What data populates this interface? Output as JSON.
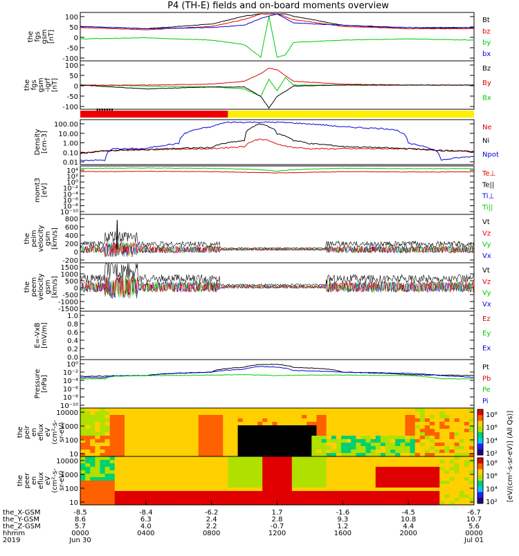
{
  "title": "P4 (TH-E) fields and on-board moments overview",
  "colors": {
    "black": "#000000",
    "red": "#e00000",
    "green": "#00c800",
    "blue": "#0000dd",
    "yellow_bar": "#ffee00",
    "red_bar": "#ee0000"
  },
  "chart_data": [
    {
      "type": "line",
      "panel": "the_fgs_gsm",
      "ylabel_lines": [
        "the",
        "fgs",
        "gsm",
        "[nT]"
      ],
      "ylim": [
        -100,
        100
      ],
      "yticks": [
        "100",
        "50",
        "0",
        "-50",
        "-100"
      ],
      "legend": [
        {
          "name": "Bt",
          "color": "#000000"
        },
        {
          "name": "bz",
          "color": "#e00000"
        },
        {
          "name": "by",
          "color": "#00c800"
        },
        {
          "name": "bx",
          "color": "#0000dd"
        }
      ],
      "series": [
        {
          "name": "Bt",
          "x_hours": [
            0,
            4,
            8,
            10,
            11,
            11.5,
            12,
            12.5,
            13,
            16,
            20,
            24
          ],
          "values": [
            45,
            35,
            55,
            90,
            100,
            100,
            100,
            100,
            90,
            50,
            35,
            40
          ]
        },
        {
          "name": "bz",
          "x_hours": [
            0,
            4,
            8,
            10,
            11,
            12,
            13,
            16,
            20,
            24
          ],
          "values": [
            40,
            30,
            45,
            75,
            100,
            100,
            75,
            45,
            35,
            35
          ]
        },
        {
          "name": "by",
          "x_hours": [
            0,
            4,
            8,
            10,
            11,
            11.5,
            12,
            12.5,
            13,
            16,
            20,
            24
          ],
          "values": [
            -10,
            -5,
            -15,
            -35,
            -90,
            90,
            -90,
            -80,
            -25,
            -15,
            -10,
            -15
          ]
        },
        {
          "name": "bx",
          "x_hours": [
            0,
            4,
            8,
            10,
            11,
            12,
            13,
            16,
            20,
            24
          ],
          "values": [
            45,
            35,
            40,
            50,
            80,
            100,
            60,
            50,
            40,
            40
          ]
        }
      ]
    },
    {
      "type": "line",
      "panel": "the_fgs_gsm_igrf",
      "ylabel_lines": [
        "the",
        "fgs",
        "gsm",
        "-igrf",
        "[nT]"
      ],
      "ylim": [
        -120,
        120
      ],
      "yticks": [
        "100",
        "50",
        "0",
        "-50",
        "-100"
      ],
      "legend": [
        {
          "name": "Bz",
          "color": "#000000"
        },
        {
          "name": "By",
          "color": "#e00000"
        },
        {
          "name": "Bx",
          "color": "#00c800"
        }
      ],
      "series": [
        {
          "name": "Bx",
          "x_hours": [
            0,
            4,
            8,
            10,
            11,
            11.5,
            12,
            12.5,
            13,
            16,
            20,
            24
          ],
          "values": [
            0,
            -5,
            -10,
            -20,
            -60,
            30,
            -30,
            40,
            0,
            0,
            0,
            0
          ]
        },
        {
          "name": "By",
          "x_hours": [
            0,
            4,
            8,
            10,
            11,
            11.5,
            12,
            13,
            16,
            20,
            24
          ],
          "values": [
            0,
            0,
            5,
            20,
            60,
            90,
            80,
            20,
            5,
            0,
            0
          ]
        },
        {
          "name": "Bz",
          "x_hours": [
            0,
            4,
            8,
            10,
            11,
            11.5,
            12,
            13,
            16,
            20,
            24
          ],
          "values": [
            0,
            -20,
            -10,
            -10,
            -60,
            -120,
            -60,
            -5,
            0,
            0,
            0
          ]
        }
      ]
    },
    {
      "type": "bar",
      "panel": "mode_bar",
      "segments": [
        {
          "from_hours": 0,
          "to_hours": 9.0,
          "color": "#ee0000"
        },
        {
          "from_hours": 9.0,
          "to_hours": 24,
          "color": "#ffee00"
        }
      ]
    },
    {
      "type": "line",
      "panel": "density",
      "ylabel_lines": [
        "Density",
        "[cm-3]"
      ],
      "ylim": [
        0.01,
        200
      ],
      "scale": "log",
      "yticks": [
        "100.00",
        "10.00",
        "1.00",
        "0.10",
        "0.01"
      ],
      "legend": [
        {
          "name": "Ne",
          "color": "#e00000"
        },
        {
          "name": "Ni",
          "color": "#000000"
        },
        {
          "name": "Npot",
          "color": "#0000dd"
        }
      ],
      "series": [
        {
          "name": "Ne",
          "x_hours": [
            0,
            2,
            4,
            8,
            10,
            11,
            12,
            13,
            14,
            16,
            20,
            22,
            24
          ],
          "values": [
            0.1,
            0.2,
            0.25,
            0.3,
            0.5,
            3,
            0.8,
            0.4,
            0.3,
            0.3,
            0.3,
            0.2,
            0.15
          ]
        },
        {
          "name": "Ni",
          "x_hours": [
            0,
            2,
            4,
            8,
            10,
            11,
            12,
            13,
            14,
            16,
            20,
            22,
            24
          ],
          "values": [
            0.1,
            0.2,
            0.25,
            0.4,
            2,
            100,
            10,
            2,
            1,
            0.5,
            0.3,
            0.2,
            0.15
          ]
        },
        {
          "name": "Npot",
          "x_hours": [
            0,
            1.5,
            2,
            4,
            6,
            8,
            9,
            12,
            16,
            19,
            20,
            22,
            24
          ],
          "values": [
            0.02,
            0.02,
            0.3,
            0.3,
            1,
            50,
            150,
            150,
            50,
            30,
            1,
            0.02,
            0.05
          ]
        }
      ]
    },
    {
      "type": "line",
      "panel": "momt3",
      "ylabel_lines": [
        "momt3",
        "[eV]"
      ],
      "ylim": [
        1e-10,
        10000.0
      ],
      "scale": "log",
      "yticks": [
        "10⁴",
        "10²",
        "10⁰",
        "10⁻²",
        "10⁻⁴",
        "10⁻⁶",
        "10⁻⁸",
        "10⁻¹⁰"
      ],
      "legend": [
        {
          "name": "Te⊥",
          "color": "#e00000"
        },
        {
          "name": "Te||",
          "color": "#000000"
        },
        {
          "name": "Ti⊥",
          "color": "#0000dd"
        },
        {
          "name": "Ti||",
          "color": "#00c800"
        }
      ],
      "series": [
        {
          "name": "Ti||",
          "x_hours": [
            0,
            4,
            8,
            10,
            12,
            14,
            16,
            20,
            24
          ],
          "values": [
            5000,
            6000,
            5000,
            3000,
            600,
            3000,
            5000,
            4000,
            4000
          ]
        },
        {
          "name": "Te⊥",
          "x_hours": [
            0,
            4,
            8,
            10,
            12,
            14,
            16,
            20,
            24
          ],
          "values": [
            500,
            600,
            500,
            300,
            200,
            300,
            500,
            400,
            400
          ]
        }
      ]
    },
    {
      "type": "line",
      "panel": "peim_velocity",
      "ylabel_lines": [
        "the",
        "peim",
        "velocity",
        "gsm",
        "[km/s]"
      ],
      "ylim": [
        -300,
        850
      ],
      "yticks": [
        "800",
        "600",
        "400",
        "200",
        "0",
        "-200"
      ],
      "legend": [
        {
          "name": "Vt",
          "color": "#000000"
        },
        {
          "name": "Vz",
          "color": "#e00000"
        },
        {
          "name": "Vy",
          "color": "#00c800"
        },
        {
          "name": "Vx",
          "color": "#0000dd"
        }
      ]
    },
    {
      "type": "line",
      "panel": "peem_velocity",
      "ylabel_lines": [
        "the",
        "peem",
        "velocity",
        "gsm",
        "[km/s]"
      ],
      "ylim": [
        -1500,
        1500
      ],
      "yticks": [
        "1500",
        "1000",
        "500",
        "0",
        "-500",
        "-1000",
        "-1500"
      ],
      "legend": [
        {
          "name": "Vt",
          "color": "#000000"
        },
        {
          "name": "Vz",
          "color": "#e00000"
        },
        {
          "name": "Vy",
          "color": "#00c800"
        },
        {
          "name": "Vx",
          "color": "#0000dd"
        }
      ]
    },
    {
      "type": "line",
      "panel": "e_vxb",
      "ylabel_lines": [
        "E=-VxB",
        "[mV/m]"
      ],
      "ylim": [
        0,
        1
      ],
      "yticks": [
        "1.0",
        "0.8",
        "0.6",
        "0.4",
        "0.2",
        "0.0"
      ],
      "legend": [
        {
          "name": "Ez",
          "color": "#e00000"
        },
        {
          "name": "Ey",
          "color": "#00c800"
        },
        {
          "name": "Ex",
          "color": "#0000dd"
        }
      ]
    },
    {
      "type": "line",
      "panel": "pressure",
      "ylabel_lines": [
        "Pressure",
        "[nPa]"
      ],
      "ylim": [
        1e-10,
        10
      ],
      "scale": "log",
      "yticks": [
        "10⁰",
        "10⁻²",
        "10⁻⁴",
        "10⁻⁶",
        "10⁻⁸",
        "10⁻¹⁰"
      ],
      "legend": [
        {
          "name": "Pt",
          "color": "#000000"
        },
        {
          "name": "Pb",
          "color": "#e00000"
        },
        {
          "name": "Pe",
          "color": "#00c800"
        },
        {
          "name": "Pi",
          "color": "#0000dd"
        }
      ],
      "series": [
        {
          "name": "Pt",
          "x_hours": [
            0,
            4,
            8,
            10,
            11,
            12,
            13,
            16,
            20,
            24
          ],
          "values": [
            0.002,
            0.003,
            0.02,
            0.3,
            1.5,
            1.5,
            0.3,
            0.02,
            0.005,
            0.003
          ]
        },
        {
          "name": "Pi",
          "x_hours": [
            0,
            1.5,
            2,
            4,
            8,
            10,
            11,
            12,
            13,
            16,
            20,
            22,
            24
          ],
          "values": [
            0.001,
            0.001,
            0.003,
            0.003,
            0.02,
            0.1,
            0.5,
            0.3,
            0.05,
            0.02,
            0.01,
            0.003,
            0.001
          ]
        },
        {
          "name": "Pe",
          "x_hours": [
            0,
            1.5,
            2,
            4,
            8,
            10,
            12,
            14,
            16,
            20,
            22,
            24
          ],
          "values": [
            0.0005,
            0.0005,
            0.002,
            0.003,
            0.004,
            0.005,
            0.003,
            0.004,
            0.004,
            0.003,
            0.0005,
            0.0005
          ]
        }
      ]
    },
    {
      "type": "heatmap",
      "panel": "peir_en_eflux",
      "ylabel_lines": [
        "the",
        "peir",
        "en",
        "eflux",
        "eV",
        "(cm²-s-",
        "sr-eV)"
      ],
      "yscale": "log",
      "yticks": [
        "10000",
        "1000",
        "100",
        "10"
      ]
    },
    {
      "type": "heatmap",
      "panel": "peer_en_eflux",
      "ylabel_lines": [
        "the",
        "peer",
        "en",
        "eflux",
        "eV",
        "(cm²-s-",
        "sr-eV)"
      ],
      "yscale": "log",
      "yticks": [
        "10000",
        "1000",
        "100",
        "10"
      ]
    }
  ],
  "colorbar": {
    "ticks": [
      "10⁸",
      "10⁶",
      "10⁴",
      "10²"
    ],
    "label": "[eV/(cm²-s-sr-eV)] (All Qs)]"
  },
  "x_axis": {
    "tick_hours": [
      0,
      4,
      8,
      12,
      16,
      20,
      24
    ],
    "row_labels": [
      "the_X-GSM",
      "the_Y-GSM",
      "the_Z-GSM",
      "hhmm",
      "2019"
    ],
    "rows": [
      [
        "-8.5",
        "-8.4",
        "-6.2",
        "1.7",
        "-1.6",
        "-4.5",
        "-6.7"
      ],
      [
        "8.6",
        "6.3",
        "2.4",
        "2.8",
        "9.3",
        "10.8",
        "10.7"
      ],
      [
        "5.7",
        "4.0",
        "2.2",
        "-0.7",
        "1.2",
        "4.4",
        "5.6"
      ],
      [
        "0000",
        "0400",
        "0800",
        "1200",
        "1600",
        "2000",
        "0000"
      ],
      [
        "Jun 30",
        "",
        "",
        "",
        "",
        "",
        "Jul 01"
      ]
    ]
  }
}
